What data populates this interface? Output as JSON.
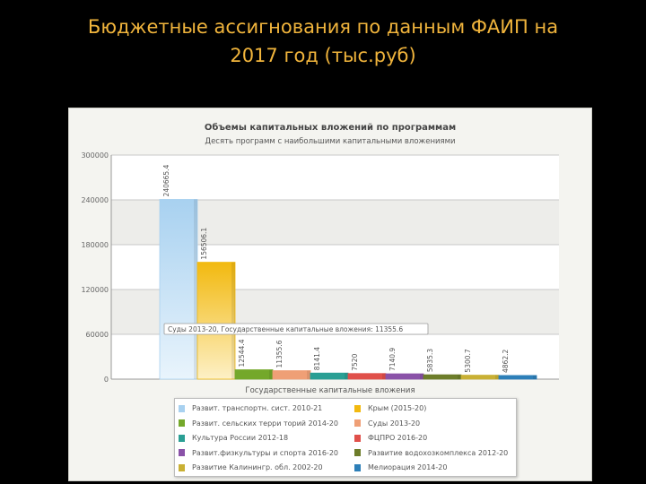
{
  "slide": {
    "title_line1": "Бюджетные ассигнования по данным ФАИП на",
    "title_line2": "2017 год (тыс.руб)"
  },
  "chart_data": {
    "type": "bar",
    "title": "Объемы капитальных вложений по программам",
    "subtitle": "Десять программ с наибольшими капитальными вложениями",
    "xlabel": "Государственные капитальные вложения",
    "ylabel": "",
    "ylim": [
      0,
      300000
    ],
    "yticks": [
      0,
      60000,
      120000,
      180000,
      240000,
      300000
    ],
    "ytick_labels": [
      "0",
      "60000",
      "120000",
      "180000",
      "240000",
      "300000"
    ],
    "grid": true,
    "legend_position": "bottom",
    "tooltip": "Суды 2013-20, Государственные капитальные вложения: 11355.6",
    "series": [
      {
        "name": "Развит. транспортн. сист. 2010-21",
        "value": 240665.4,
        "label": "240665.4",
        "color": "#a8d1f0",
        "color2": "#e9f4fc"
      },
      {
        "name": "Крым (2015-20)",
        "value": 156506.1,
        "label": "156506.1",
        "color": "#f2b90f",
        "color2": "#fdf0c6"
      },
      {
        "name": "Развит. сельских терри торий 2014-20",
        "value": 12544.4,
        "label": "12544.4",
        "color": "#74a82a",
        "color2": "#74a82a"
      },
      {
        "name": "Суды 2013-20",
        "value": 11355.6,
        "label": "11355.6",
        "color": "#ef9f76",
        "color2": "#ef9f76"
      },
      {
        "name": "Культура России 2012-18",
        "value": 8141.4,
        "label": "8141.4",
        "color": "#2a9f94",
        "color2": "#2a9f94"
      },
      {
        "name": "ФЦПРО 2016-20",
        "value": 7520,
        "label": "7520",
        "color": "#e0504a",
        "color2": "#e0504a"
      },
      {
        "name": "Развит.физкультуры и спорта 2016-20",
        "value": 7140.9,
        "label": "7140.9",
        "color": "#8a52a8",
        "color2": "#8a52a8"
      },
      {
        "name": "Развитие водохозкомплекса 2012-20",
        "value": 5835.3,
        "label": "5835.3",
        "color": "#6d7d2a",
        "color2": "#6d7d2a"
      },
      {
        "name": "Развитие Калинингр. обл. 2002-20",
        "value": 5300.7,
        "label": "5300.7",
        "color": "#c9b034",
        "color2": "#c9b034"
      },
      {
        "name": "Мелиорация 2014-20",
        "value": 4862.2,
        "label": "4862.2",
        "color": "#2d7fb8",
        "color2": "#2d7fb8"
      }
    ]
  }
}
